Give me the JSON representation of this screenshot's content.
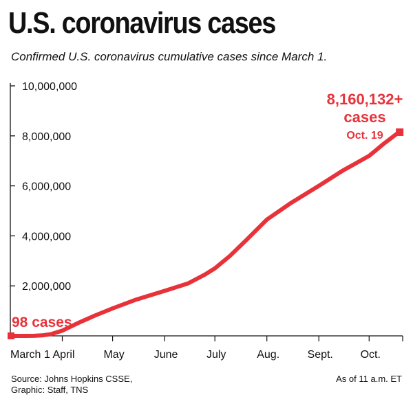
{
  "title": "U.S. coronavirus cases",
  "subtitle": "Confirmed U.S. coronavirus cumulative cases since March 1.",
  "source_line1": "Source: Johns Hopkins CSSE,",
  "source_line2": "Graphic: Staff, TNS",
  "as_of": "As of 11 a.m. ET",
  "colors": {
    "line": "#e8323a",
    "axis": "#111111"
  },
  "annotations": {
    "start_label": "98 cases",
    "end_value": "8,160,132+",
    "end_unit": "cases",
    "end_date": "Oct. 19"
  },
  "chart_data": {
    "type": "line",
    "xlabel": "",
    "ylabel": "",
    "ylim": [
      0,
      10000000
    ],
    "y_ticks": [
      2000000,
      4000000,
      6000000,
      8000000,
      10000000
    ],
    "y_tick_labels": [
      "2,000,000",
      "4,000,000",
      "6,000,000",
      "8,000,000",
      "10,000,000"
    ],
    "x_tick_labels": [
      "March 1",
      "April",
      "May",
      "June",
      "July",
      "Aug.",
      "Sept.",
      "Oct."
    ],
    "x_tick_dates": [
      "2020-03-01",
      "2020-04-01",
      "2020-05-01",
      "2020-06-01",
      "2020-07-01",
      "2020-08-01",
      "2020-09-01",
      "2020-10-01"
    ],
    "xlim": [
      "2020-03-01",
      "2020-10-21"
    ],
    "grid": false,
    "series": [
      {
        "x": [
          "2020-03-01",
          "2020-03-10",
          "2020-03-15",
          "2020-03-20",
          "2020-03-25",
          "2020-04-01",
          "2020-04-10",
          "2020-04-20",
          "2020-05-01",
          "2020-05-15",
          "2020-06-01",
          "2020-06-15",
          "2020-06-25",
          "2020-07-01",
          "2020-07-10",
          "2020-07-20",
          "2020-08-01",
          "2020-08-15",
          "2020-09-01",
          "2020-09-15",
          "2020-10-01",
          "2020-10-10",
          "2020-10-19"
        ],
        "values": [
          98,
          1000,
          3500,
          19000,
          66000,
          210000,
          500000,
          800000,
          1100000,
          1450000,
          1800000,
          2100000,
          2450000,
          2700000,
          3200000,
          3850000,
          4650000,
          5300000,
          6000000,
          6600000,
          7200000,
          7700000,
          8160132
        ]
      }
    ]
  }
}
